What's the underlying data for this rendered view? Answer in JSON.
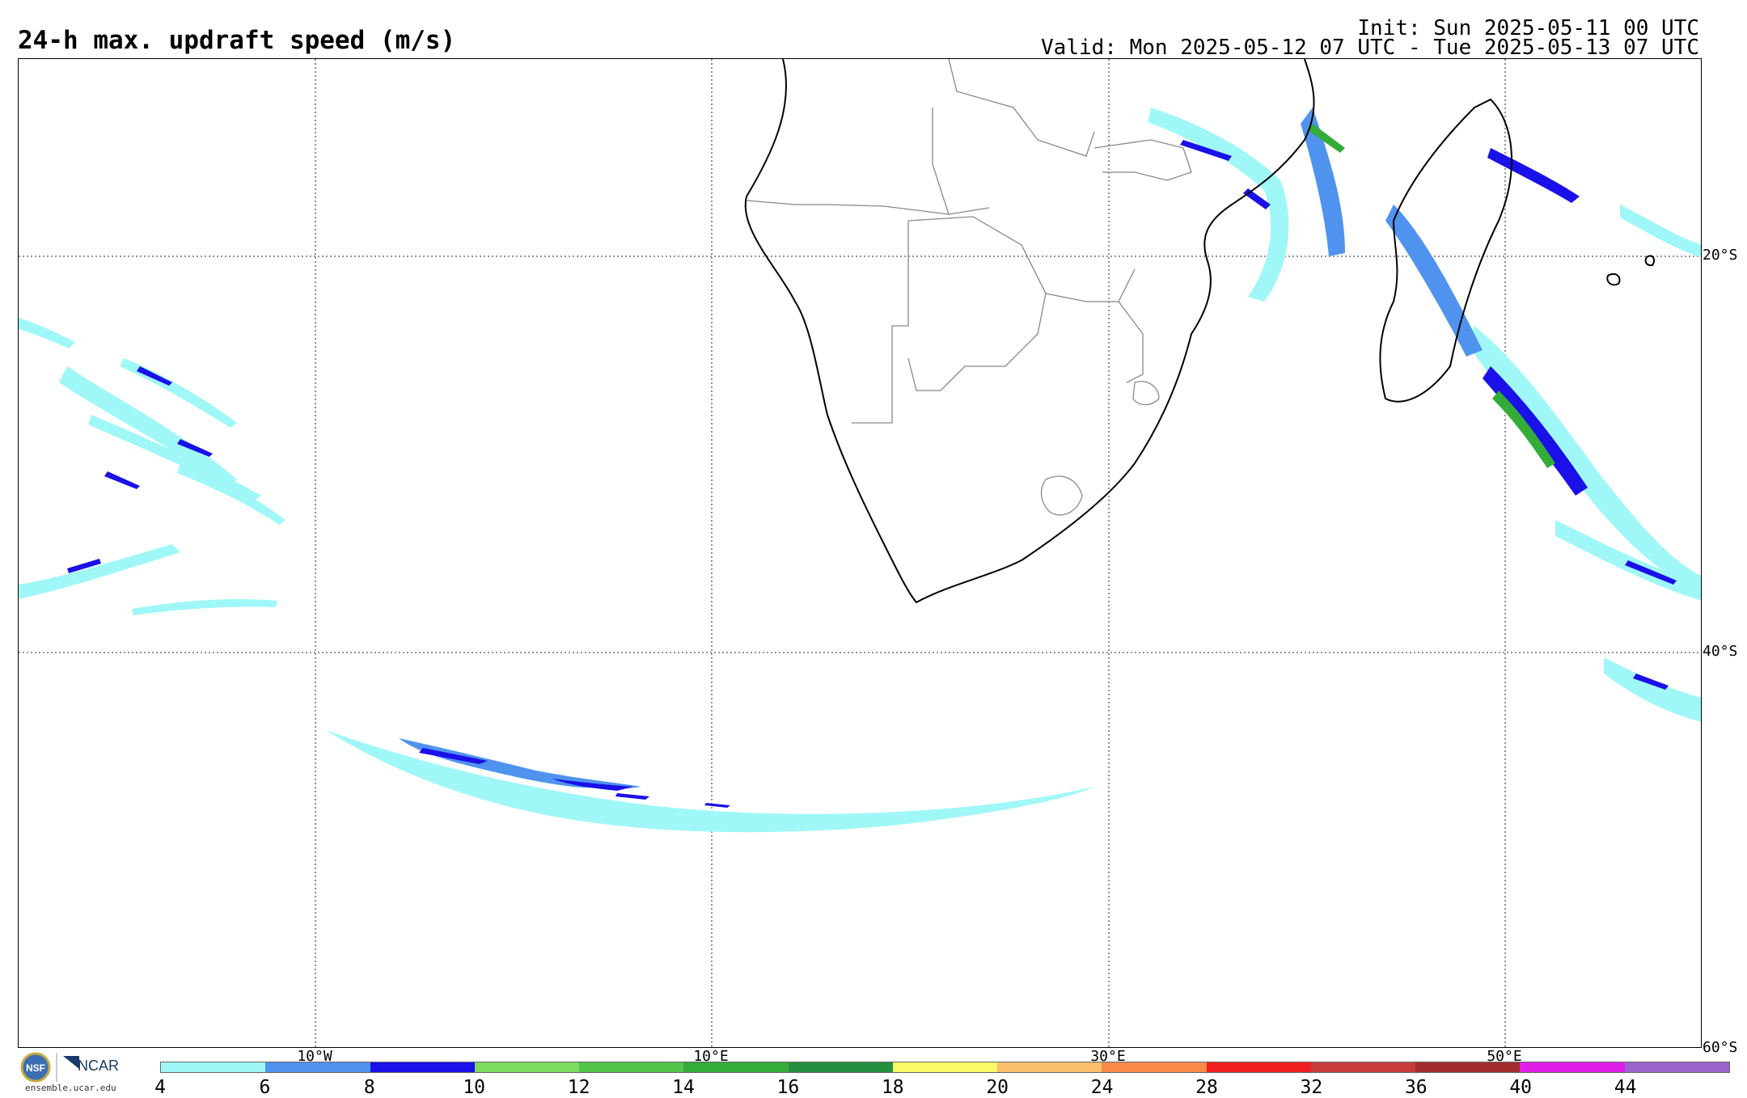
{
  "title": "24-h max. updraft speed (m/s)",
  "init": "Init: Sun 2025-05-11 00 UTC",
  "valid": "Valid: Mon 2025-05-12 07 UTC - Tue 2025-05-13 07 UTC",
  "lat_labels": [
    "20°S",
    "40°S",
    "60°S"
  ],
  "lon_labels": [
    "10°W",
    "10°E",
    "30°E",
    "50°E"
  ],
  "colorbar": {
    "ticks": [
      "4",
      "6",
      "8",
      "10",
      "12",
      "14",
      "16",
      "18",
      "20",
      "24",
      "28",
      "32",
      "36",
      "40",
      "44"
    ],
    "colors": [
      "#a0f7f7",
      "#4f93ee",
      "#1a10e8",
      "#7ddc5b",
      "#52c54a",
      "#34ac3a",
      "#248f3e",
      "#fbf865",
      "#fac06b",
      "#f98a4a",
      "#f12020",
      "#c83c3c",
      "#a12c2c",
      "#e11ee8",
      "#9b63cc"
    ]
  },
  "logo": {
    "org": "NCAR",
    "seal": "NSF",
    "site": "ensemble.ucar.edu"
  },
  "colors": {
    "grid": "#555555",
    "coast": "#000000",
    "border": "#888888"
  }
}
